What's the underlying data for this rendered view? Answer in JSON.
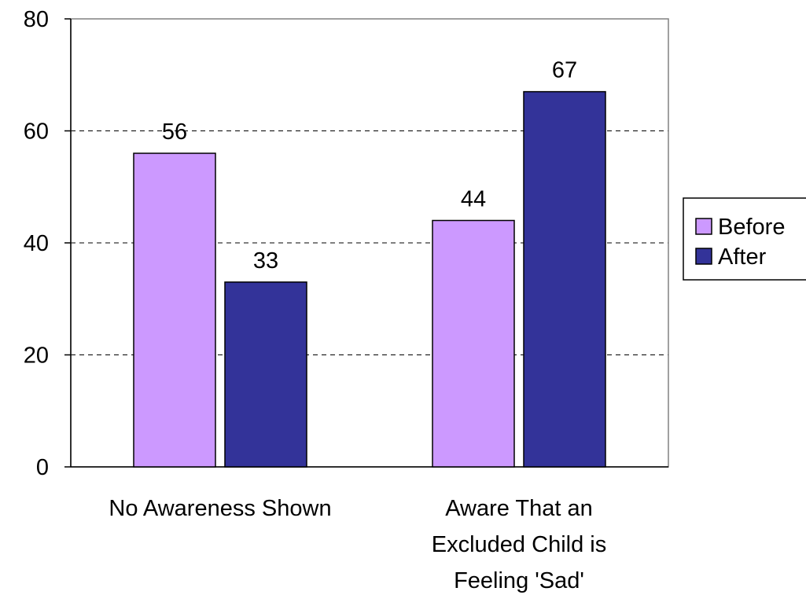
{
  "chart_data": {
    "type": "bar",
    "title": "",
    "xlabel": "",
    "ylabel": "",
    "ylim": [
      0,
      80
    ],
    "yticks": [
      0,
      20,
      40,
      60,
      80
    ],
    "grid": "horizontal-dashed",
    "legend_position": "right",
    "categories": [
      [
        "No Awareness Shown"
      ],
      [
        "Aware That an",
        "Excluded Child is",
        "Feeling 'Sad'"
      ]
    ],
    "series": [
      {
        "name": "Before",
        "values": [
          56,
          44
        ],
        "color": "#cc99ff"
      },
      {
        "name": "After",
        "values": [
          33,
          67
        ],
        "color": "#333399"
      }
    ]
  }
}
